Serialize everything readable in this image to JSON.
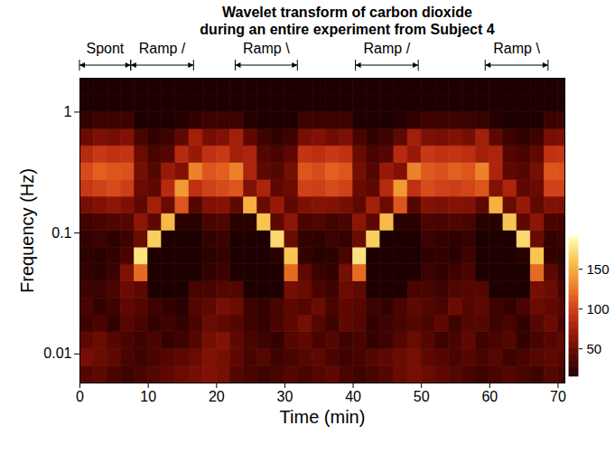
{
  "chart_data": {
    "type": "heatmap",
    "title": "Wavelet transform of carbon dioxide",
    "subtitle": "during an entire experiment from Subject 4",
    "x_label": "Time (min)",
    "y_label": "Frequency (Hz)",
    "xlim": [
      0,
      71
    ],
    "xticks": [
      0,
      10,
      20,
      30,
      40,
      50,
      60,
      70
    ],
    "ylim": [
      0.00575,
      1.905
    ],
    "yticks": [
      0.01,
      0.1,
      1
    ],
    "log": "y",
    "annotations": [
      {
        "text": "Spont",
        "start": 0,
        "end": 7.5
      },
      {
        "text": "Ramp /",
        "start": 7.5,
        "end": 16.7
      },
      {
        "text": "Ramp \\",
        "start": 22.8,
        "end": 31.9
      },
      {
        "text": "Ramp /",
        "start": 40.4,
        "end": 49.6
      },
      {
        "text": "Ramp \\",
        "start": 59.4,
        "end": 68.6
      }
    ],
    "x_edges": [
      0,
      2,
      4,
      6,
      8,
      10,
      12,
      14,
      16,
      18,
      20,
      22,
      24,
      26,
      28,
      30,
      32,
      34,
      36,
      38,
      40,
      42,
      44,
      46,
      48,
      50,
      52,
      54,
      56,
      58,
      60,
      62,
      64,
      66,
      68,
      70,
      71
    ],
    "y_edges": [
      0.00575,
      0.00794,
      0.01096,
      0.01514,
      0.0209,
      0.0288,
      0.0398,
      0.055,
      0.0759,
      0.1047,
      0.1445,
      0.1995,
      0.2754,
      0.3802,
      0.5248,
      0.7244,
      1,
      1.38,
      1.905
    ],
    "values": [
      [
        40,
        45,
        35,
        30,
        35,
        40,
        45,
        50,
        55,
        60,
        55,
        40,
        35,
        30,
        35,
        40,
        35,
        40,
        45,
        35,
        30,
        35,
        40,
        50,
        55,
        50,
        45,
        40,
        35,
        30,
        35,
        40,
        35,
        30,
        40,
        35
      ],
      [
        55,
        50,
        45,
        35,
        30,
        35,
        40,
        45,
        50,
        60,
        55,
        45,
        35,
        40,
        30,
        35,
        40,
        45,
        35,
        30,
        35,
        40,
        45,
        50,
        55,
        45,
        40,
        35,
        40,
        35,
        40,
        30,
        35,
        40,
        45,
        40
      ],
      [
        45,
        50,
        40,
        35,
        30,
        35,
        25,
        30,
        40,
        55,
        60,
        45,
        35,
        30,
        25,
        40,
        45,
        35,
        40,
        30,
        35,
        25,
        30,
        40,
        50,
        40,
        30,
        35,
        45,
        30,
        35,
        40,
        25,
        35,
        40,
        45
      ],
      [
        30,
        35,
        25,
        40,
        35,
        25,
        30,
        25,
        35,
        50,
        45,
        40,
        30,
        25,
        35,
        45,
        55,
        40,
        30,
        45,
        40,
        25,
        30,
        35,
        40,
        35,
        45,
        30,
        40,
        40,
        30,
        35,
        25,
        40,
        50,
        35
      ],
      [
        35,
        25,
        30,
        45,
        40,
        30,
        25,
        20,
        40,
        45,
        55,
        50,
        30,
        25,
        35,
        45,
        40,
        50,
        35,
        45,
        40,
        30,
        25,
        35,
        45,
        40,
        35,
        50,
        40,
        45,
        30,
        25,
        35,
        50,
        45,
        40
      ],
      [
        30,
        28,
        35,
        50,
        45,
        15,
        12,
        12,
        35,
        35,
        40,
        40,
        15,
        12,
        15,
        55,
        50,
        35,
        30,
        50,
        45,
        15,
        12,
        12,
        35,
        35,
        30,
        38,
        40,
        40,
        15,
        12,
        15,
        55,
        50,
        35
      ],
      [
        25,
        22,
        28,
        60,
        120,
        12,
        10,
        10,
        10,
        25,
        30,
        12,
        10,
        10,
        12,
        120,
        45,
        28,
        25,
        55,
        120,
        12,
        10,
        10,
        10,
        28,
        25,
        30,
        35,
        12,
        10,
        10,
        12,
        120,
        45,
        28
      ],
      [
        22,
        20,
        25,
        35,
        175,
        15,
        12,
        12,
        12,
        22,
        25,
        12,
        12,
        12,
        20,
        160,
        25,
        20,
        22,
        35,
        175,
        15,
        12,
        12,
        12,
        22,
        25,
        20,
        30,
        12,
        12,
        12,
        20,
        160,
        25,
        22
      ],
      [
        25,
        28,
        22,
        30,
        50,
        165,
        15,
        12,
        15,
        25,
        28,
        15,
        12,
        15,
        170,
        50,
        25,
        22,
        28,
        26,
        50,
        165,
        15,
        12,
        15,
        28,
        25,
        22,
        26,
        15,
        12,
        15,
        170,
        50,
        25,
        28
      ],
      [
        32,
        35,
        38,
        40,
        65,
        45,
        155,
        20,
        20,
        35,
        38,
        20,
        20,
        160,
        45,
        65,
        35,
        38,
        32,
        36,
        65,
        45,
        155,
        20,
        20,
        36,
        34,
        38,
        35,
        20,
        20,
        160,
        45,
        65,
        35,
        32
      ],
      [
        55,
        60,
        65,
        58,
        45,
        75,
        50,
        110,
        40,
        60,
        62,
        45,
        150,
        50,
        70,
        45,
        58,
        62,
        60,
        55,
        45,
        75,
        50,
        110,
        40,
        60,
        58,
        62,
        60,
        45,
        150,
        50,
        70,
        45,
        60,
        58
      ],
      [
        95,
        100,
        105,
        98,
        50,
        45,
        85,
        140,
        90,
        100,
        105,
        110,
        60,
        80,
        45,
        50,
        100,
        98,
        105,
        100,
        50,
        45,
        85,
        140,
        90,
        105,
        100,
        98,
        102,
        110,
        60,
        80,
        45,
        50,
        100,
        100
      ],
      [
        105,
        115,
        110,
        108,
        55,
        40,
        70,
        60,
        130,
        110,
        115,
        130,
        80,
        45,
        40,
        55,
        110,
        105,
        115,
        110,
        55,
        40,
        70,
        60,
        130,
        112,
        108,
        115,
        110,
        130,
        80,
        45,
        40,
        55,
        110,
        108
      ],
      [
        85,
        95,
        90,
        92,
        50,
        35,
        40,
        85,
        70,
        90,
        95,
        75,
        80,
        40,
        35,
        45,
        92,
        88,
        95,
        90,
        50,
        35,
        40,
        85,
        70,
        95,
        90,
        92,
        88,
        75,
        80,
        40,
        35,
        45,
        90,
        92
      ],
      [
        50,
        58,
        55,
        60,
        35,
        25,
        30,
        45,
        75,
        55,
        60,
        75,
        45,
        30,
        25,
        30,
        55,
        60,
        52,
        58,
        35,
        25,
        30,
        45,
        75,
        58,
        55,
        60,
        55,
        75,
        45,
        30,
        25,
        30,
        55,
        58
      ],
      [
        25,
        30,
        28,
        30,
        15,
        14,
        15,
        18,
        25,
        28,
        30,
        28,
        18,
        14,
        13,
        14,
        28,
        30,
        28,
        30,
        15,
        14,
        15,
        18,
        25,
        30,
        28,
        30,
        28,
        26,
        18,
        14,
        13,
        14,
        28,
        30
      ],
      [
        12,
        12,
        12,
        12,
        8,
        8,
        8,
        8,
        10,
        12,
        12,
        10,
        8,
        8,
        8,
        8,
        12,
        12,
        12,
        12,
        8,
        8,
        8,
        8,
        10,
        12,
        12,
        12,
        12,
        10,
        8,
        8,
        8,
        8,
        12,
        12
      ],
      [
        6,
        6,
        6,
        6,
        6,
        6,
        6,
        6,
        6,
        6,
        6,
        6,
        6,
        6,
        6,
        6,
        6,
        6,
        6,
        6,
        6,
        6,
        6,
        6,
        6,
        6,
        6,
        6,
        6,
        6,
        6,
        6,
        6,
        6,
        6,
        6
      ]
    ],
    "colorbar": {
      "range": [
        15,
        190
      ],
      "ticks": [
        50,
        100,
        150
      ]
    }
  }
}
